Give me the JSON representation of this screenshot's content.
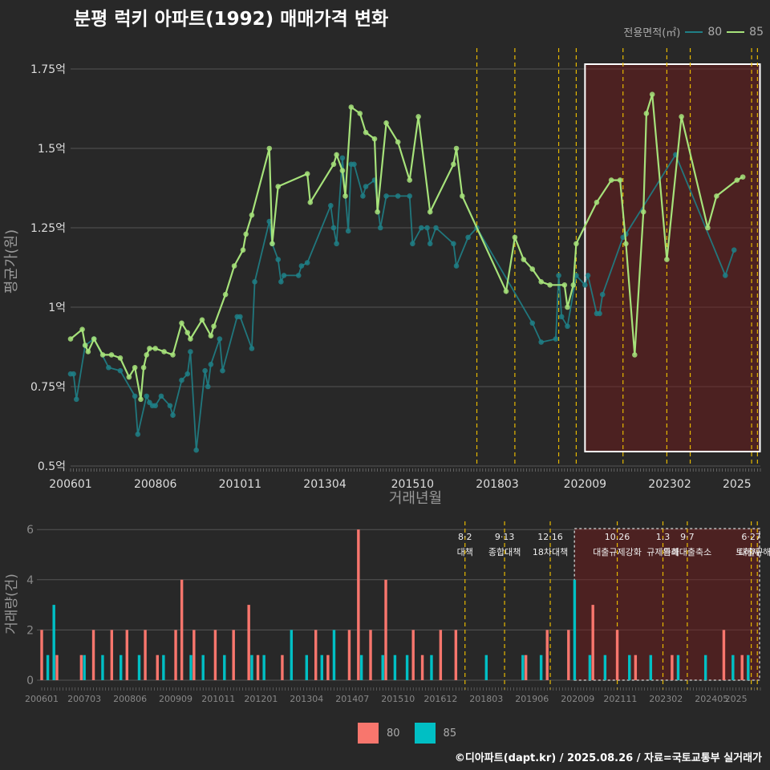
{
  "title": "분평 럭키 아파트(1992) 매매가격 변화",
  "caption": "©디아파트(dapt.kr) / 2025.08.26 / 자료=국토교통부 실거래가",
  "colors": {
    "s80_line": "#1f7f86",
    "s85_line": "#a6e27a",
    "bar80": "#f8766d",
    "bar85": "#00bfc4",
    "event": "#e6b800"
  },
  "chart_data": [
    {
      "type": "line",
      "title": "분평 럭키 아파트(1992) 매매가격 변화",
      "xlabel": "거래년월",
      "ylabel": "평균가(원)",
      "ylim": [
        0.5,
        1.8
      ],
      "x_ticks": [
        "200601",
        "200806",
        "201011",
        "201304",
        "201510",
        "201803",
        "202009",
        "202302",
        "2025"
      ],
      "y_ticks": [
        "0.5억",
        "0.75억",
        "1억",
        "1.25억",
        "1.5억",
        "1.75억"
      ],
      "legend_title": "전용면적(㎡)",
      "legend": [
        "80",
        "85"
      ],
      "highlight_range": [
        "2020-09",
        "2025-12"
      ],
      "event_lines": [
        "2017-08",
        "2018-09",
        "2019-12",
        "2020-06",
        "2021-10",
        "2023-01",
        "2023-09",
        "2025-06",
        "2025-08"
      ],
      "series": [
        {
          "name": "80",
          "points": [
            [
              "2006-01",
              0.79
            ],
            [
              "2006-02",
              0.79
            ],
            [
              "2006-03",
              0.71
            ],
            [
              "2006-06",
              0.88
            ],
            [
              "2006-09",
              0.9
            ],
            [
              "2007-02",
              0.81
            ],
            [
              "2007-06",
              0.8
            ],
            [
              "2007-11",
              0.72
            ],
            [
              "2007-12",
              0.6
            ],
            [
              "2008-03",
              0.72
            ],
            [
              "2008-04",
              0.7
            ],
            [
              "2008-05",
              0.69
            ],
            [
              "2008-06",
              0.69
            ],
            [
              "2008-08",
              0.72
            ],
            [
              "2008-11",
              0.69
            ],
            [
              "2008-12",
              0.66
            ],
            [
              "2009-03",
              0.77
            ],
            [
              "2009-05",
              0.79
            ],
            [
              "2009-06",
              0.86
            ],
            [
              "2009-08",
              0.55
            ],
            [
              "2009-11",
              0.8
            ],
            [
              "2009-12",
              0.75
            ],
            [
              "2010-01",
              0.82
            ],
            [
              "2010-04",
              0.9
            ],
            [
              "2010-05",
              0.8
            ],
            [
              "2010-10",
              0.97
            ],
            [
              "2010-11",
              0.97
            ],
            [
              "2011-03",
              0.87
            ],
            [
              "2011-04",
              1.08
            ],
            [
              "2011-09",
              1.27
            ],
            [
              "2011-10",
              1.2
            ],
            [
              "2011-12",
              1.15
            ],
            [
              "2012-01",
              1.08
            ],
            [
              "2012-02",
              1.1
            ],
            [
              "2012-07",
              1.1
            ],
            [
              "2012-08",
              1.13
            ],
            [
              "2012-10",
              1.14
            ],
            [
              "2013-06",
              1.32
            ],
            [
              "2013-07",
              1.25
            ],
            [
              "2013-08",
              1.2
            ],
            [
              "2013-10",
              1.47
            ],
            [
              "2013-12",
              1.24
            ],
            [
              "2014-01",
              1.45
            ],
            [
              "2014-02",
              1.45
            ],
            [
              "2014-05",
              1.35
            ],
            [
              "2014-06",
              1.38
            ],
            [
              "2014-09",
              1.4
            ],
            [
              "2014-11",
              1.25
            ],
            [
              "2015-01",
              1.35
            ],
            [
              "2015-05",
              1.35
            ],
            [
              "2015-09",
              1.35
            ],
            [
              "2015-10",
              1.2
            ],
            [
              "2016-01",
              1.25
            ],
            [
              "2016-03",
              1.25
            ],
            [
              "2016-04",
              1.2
            ],
            [
              "2016-06",
              1.25
            ],
            [
              "2016-12",
              1.2
            ],
            [
              "2017-01",
              1.13
            ],
            [
              "2017-05",
              1.22
            ],
            [
              "2017-08",
              1.25
            ],
            [
              "2019-03",
              0.95
            ],
            [
              "2019-06",
              0.89
            ],
            [
              "2019-11",
              0.9
            ],
            [
              "2019-12",
              1.1
            ],
            [
              "2020-01",
              0.97
            ],
            [
              "2020-03",
              0.94
            ],
            [
              "2020-06",
              1.1
            ],
            [
              "2020-09",
              1.07
            ],
            [
              "2020-10",
              1.1
            ],
            [
              "2021-01",
              0.98
            ],
            [
              "2021-02",
              0.98
            ],
            [
              "2021-03",
              1.04
            ],
            [
              "2021-10",
              1.22
            ],
            [
              "2021-11",
              1.23
            ],
            [
              "2023-04",
              1.48
            ],
            [
              "2024-09",
              1.1
            ],
            [
              "2024-12",
              1.18
            ]
          ]
        },
        {
          "name": "85",
          "points": [
            [
              "2006-01",
              0.9
            ],
            [
              "2006-05",
              0.93
            ],
            [
              "2006-06",
              0.88
            ],
            [
              "2006-07",
              0.86
            ],
            [
              "2006-09",
              0.9
            ],
            [
              "2006-12",
              0.85
            ],
            [
              "2007-03",
              0.85
            ],
            [
              "2007-06",
              0.84
            ],
            [
              "2007-09",
              0.78
            ],
            [
              "2007-11",
              0.81
            ],
            [
              "2008-01",
              0.71
            ],
            [
              "2008-02",
              0.81
            ],
            [
              "2008-03",
              0.85
            ],
            [
              "2008-04",
              0.87
            ],
            [
              "2008-06",
              0.87
            ],
            [
              "2008-09",
              0.86
            ],
            [
              "2008-12",
              0.85
            ],
            [
              "2009-03",
              0.95
            ],
            [
              "2009-05",
              0.92
            ],
            [
              "2009-06",
              0.9
            ],
            [
              "2009-10",
              0.96
            ],
            [
              "2010-01",
              0.91
            ],
            [
              "2010-02",
              0.94
            ],
            [
              "2010-06",
              1.04
            ],
            [
              "2010-09",
              1.13
            ],
            [
              "2010-12",
              1.18
            ],
            [
              "2011-01",
              1.23
            ],
            [
              "2011-03",
              1.29
            ],
            [
              "2011-09",
              1.5
            ],
            [
              "2011-10",
              1.2
            ],
            [
              "2011-12",
              1.38
            ],
            [
              "2012-10",
              1.42
            ],
            [
              "2012-11",
              1.33
            ],
            [
              "2013-07",
              1.45
            ],
            [
              "2013-08",
              1.48
            ],
            [
              "2013-10",
              1.43
            ],
            [
              "2013-11",
              1.35
            ],
            [
              "2014-01",
              1.63
            ],
            [
              "2014-04",
              1.61
            ],
            [
              "2014-06",
              1.55
            ],
            [
              "2014-09",
              1.53
            ],
            [
              "2014-10",
              1.3
            ],
            [
              "2015-01",
              1.58
            ],
            [
              "2015-05",
              1.52
            ],
            [
              "2015-09",
              1.4
            ],
            [
              "2015-12",
              1.6
            ],
            [
              "2016-04",
              1.3
            ],
            [
              "2016-12",
              1.45
            ],
            [
              "2017-01",
              1.5
            ],
            [
              "2017-03",
              1.35
            ],
            [
              "2018-06",
              1.05
            ],
            [
              "2018-09",
              1.22
            ],
            [
              "2018-12",
              1.15
            ],
            [
              "2019-03",
              1.12
            ],
            [
              "2019-06",
              1.08
            ],
            [
              "2019-09",
              1.07
            ],
            [
              "2020-02",
              1.07
            ],
            [
              "2020-03",
              1.0
            ],
            [
              "2020-05",
              1.07
            ],
            [
              "2020-06",
              1.2
            ],
            [
              "2021-01",
              1.33
            ],
            [
              "2021-06",
              1.4
            ],
            [
              "2021-09",
              1.4
            ],
            [
              "2021-11",
              1.2
            ],
            [
              "2022-02",
              0.85
            ],
            [
              "2022-05",
              1.3
            ],
            [
              "2022-06",
              1.61
            ],
            [
              "2022-08",
              1.67
            ],
            [
              "2023-01",
              1.15
            ],
            [
              "2023-06",
              1.6
            ],
            [
              "2024-03",
              1.25
            ],
            [
              "2024-06",
              1.35
            ],
            [
              "2025-01",
              1.4
            ],
            [
              "2025-03",
              1.41
            ]
          ]
        }
      ]
    },
    {
      "type": "bar",
      "ylabel": "거래량(건)",
      "ylim": [
        0,
        6
      ],
      "x_ticks": [
        "200601",
        "200703",
        "200806",
        "200909",
        "201011",
        "201201",
        "201304",
        "201407",
        "201510",
        "201612",
        "201803",
        "201906",
        "202009",
        "202111",
        "202302",
        "202405",
        "2025"
      ],
      "y_ticks": [
        "0",
        "2",
        "4",
        "6"
      ],
      "legend": [
        "80",
        "85"
      ],
      "annotations": [
        {
          "month": "2017-08",
          "date": "8·2",
          "label": "대책"
        },
        {
          "month": "2018-09",
          "date": "9·13",
          "label": "종합대책"
        },
        {
          "month": "2019-12",
          "date": "12·16",
          "label": "18차대책"
        },
        {
          "month": "2021-10",
          "date": "10.26",
          "label": "대출규제강화"
        },
        {
          "month": "2023-01",
          "date": "1.3",
          "label": "규제완화"
        },
        {
          "month": "2023-09",
          "date": "9·7",
          "label": "특례대출축소"
        },
        {
          "month": "2025-06",
          "date": "6·27",
          "label": "대출규"
        },
        {
          "month": "2025-08",
          "date": "",
          "label": "토허제 해제"
        }
      ],
      "series": [
        {
          "name": "80",
          "values": [
            [
              "2006-01",
              2
            ],
            [
              "2006-06",
              1
            ],
            [
              "2007-02",
              1
            ],
            [
              "2007-06",
              2
            ],
            [
              "2007-12",
              2
            ],
            [
              "2008-05",
              2
            ],
            [
              "2008-11",
              2
            ],
            [
              "2009-03",
              1
            ],
            [
              "2009-09",
              2
            ],
            [
              "2009-11",
              4
            ],
            [
              "2010-03",
              2
            ],
            [
              "2010-10",
              2
            ],
            [
              "2011-04",
              2
            ],
            [
              "2011-09",
              3
            ],
            [
              "2011-12",
              1
            ],
            [
              "2012-08",
              1
            ],
            [
              "2013-07",
              2
            ],
            [
              "2013-11",
              1
            ],
            [
              "2014-06",
              2
            ],
            [
              "2014-09",
              6
            ],
            [
              "2015-01",
              2
            ],
            [
              "2015-06",
              4
            ],
            [
              "2016-03",
              2
            ],
            [
              "2016-06",
              1
            ],
            [
              "2016-12",
              2
            ],
            [
              "2017-05",
              2
            ],
            [
              "2019-04",
              1
            ],
            [
              "2019-11",
              2
            ],
            [
              "2020-06",
              2
            ],
            [
              "2021-02",
              3
            ],
            [
              "2021-10",
              2
            ],
            [
              "2022-04",
              1
            ],
            [
              "2023-04",
              1
            ],
            [
              "2024-09",
              2
            ],
            [
              "2025-03",
              1
            ]
          ]
        },
        {
          "name": "85",
          "values": [
            [
              "2006-03",
              1
            ],
            [
              "2006-05",
              3
            ],
            [
              "2007-03",
              1
            ],
            [
              "2007-09",
              1
            ],
            [
              "2008-03",
              1
            ],
            [
              "2008-09",
              1
            ],
            [
              "2009-05",
              1
            ],
            [
              "2010-02",
              1
            ],
            [
              "2010-06",
              1
            ],
            [
              "2011-01",
              1
            ],
            [
              "2011-10",
              1
            ],
            [
              "2012-02",
              1
            ],
            [
              "2012-11",
              2
            ],
            [
              "2013-04",
              1
            ],
            [
              "2013-09",
              1
            ],
            [
              "2014-01",
              2
            ],
            [
              "2014-10",
              1
            ],
            [
              "2015-05",
              1
            ],
            [
              "2015-09",
              1
            ],
            [
              "2016-01",
              1
            ],
            [
              "2016-09",
              1
            ],
            [
              "2018-03",
              1
            ],
            [
              "2019-03",
              1
            ],
            [
              "2019-09",
              1
            ],
            [
              "2020-08",
              4
            ],
            [
              "2021-01",
              1
            ],
            [
              "2021-06",
              1
            ],
            [
              "2022-02",
              1
            ],
            [
              "2022-09",
              1
            ],
            [
              "2023-06",
              1
            ],
            [
              "2024-03",
              1
            ],
            [
              "2024-12",
              1
            ],
            [
              "2025-05",
              1
            ]
          ]
        }
      ]
    }
  ]
}
